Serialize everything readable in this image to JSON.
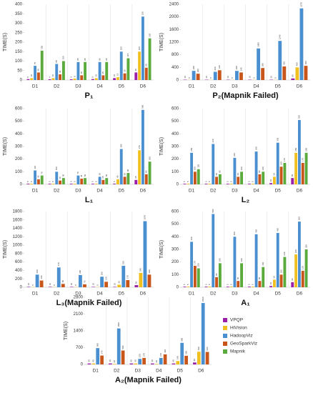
{
  "chart_data": [
    {
      "type": "bar",
      "title": "P₁",
      "ylabel": "TIME(S)",
      "categories": [
        "D1",
        "D2",
        "D3",
        "D4",
        "D5",
        "D6"
      ],
      "ylim": [
        0,
        400
      ],
      "yticks": [
        0,
        50,
        100,
        150,
        200,
        250,
        300,
        350,
        400
      ],
      "series": [
        {
          "name": "VPQP",
          "color": "#9b1fa8",
          "values": [
            5,
            4,
            4,
            5,
            10,
            40
          ]
        },
        {
          "name": "HiVision",
          "color": "#f0c020",
          "values": [
            10,
            10,
            8,
            10,
            15,
            150
          ]
        },
        {
          "name": "HadoopViz",
          "color": "#4a90d0",
          "values": [
            75,
            85,
            95,
            95,
            150,
            335
          ]
        },
        {
          "name": "GeoSparkViz",
          "color": "#c8561a",
          "values": [
            40,
            30,
            25,
            25,
            35,
            65
          ]
        },
        {
          "name": "Mapnik",
          "color": "#5aaa3c",
          "values": [
            155,
            100,
            95,
            95,
            115,
            220
          ]
        }
      ]
    },
    {
      "type": "bar",
      "title": "P₂(Mapnik Failed)",
      "ylabel": "TIME(S)",
      "categories": [
        "D1",
        "D2",
        "D3",
        "D4",
        "D5",
        "D6"
      ],
      "ylim": [
        0,
        2400
      ],
      "yticks": [
        0,
        400,
        800,
        1200,
        1600,
        2000,
        2400
      ],
      "series": [
        {
          "name": "VPQP",
          "color": "#9b1fa8",
          "values": [
            10,
            10,
            10,
            10,
            10,
            50
          ]
        },
        {
          "name": "HiVision",
          "color": "#f0c020",
          "values": [
            5,
            5,
            5,
            5,
            5,
            400
          ]
        },
        {
          "name": "HadoopViz",
          "color": "#4a90d0",
          "values": [
            290,
            260,
            290,
            1000,
            1240,
            2270
          ]
        },
        {
          "name": "GeoSparkViz",
          "color": "#c8561a",
          "values": [
            200,
            310,
            240,
            380,
            430,
            450
          ]
        }
      ]
    },
    {
      "type": "bar",
      "title": "L₁",
      "ylabel": "TIME(S)",
      "categories": [
        "D1",
        "D2",
        "D3",
        "D4",
        "D5",
        "D6"
      ],
      "ylim": [
        0,
        600
      ],
      "yticks": [
        0,
        100,
        200,
        300,
        400,
        500,
        600
      ],
      "series": [
        {
          "name": "VPQP",
          "color": "#9b1fa8",
          "values": [
            5,
            5,
            5,
            5,
            5,
            35
          ]
        },
        {
          "name": "HiVision",
          "color": "#f0c020",
          "values": [
            5,
            5,
            5,
            5,
            40,
            270
          ]
        },
        {
          "name": "HadoopViz",
          "color": "#4a90d0",
          "values": [
            110,
            100,
            70,
            60,
            280,
            590
          ]
        },
        {
          "name": "GeoSparkViz",
          "color": "#c8561a",
          "values": [
            40,
            30,
            45,
            35,
            60,
            80
          ]
        },
        {
          "name": "Mapnik",
          "color": "#5aaa3c",
          "values": [
            70,
            50,
            50,
            50,
            90,
            180
          ]
        }
      ]
    },
    {
      "type": "bar",
      "title": "L₂",
      "ylabel": "TIME(S)",
      "categories": [
        "D1",
        "D2",
        "D3",
        "D4",
        "D5",
        "D6"
      ],
      "ylim": [
        0,
        600
      ],
      "yticks": [
        0,
        100,
        200,
        300,
        400,
        500,
        600
      ],
      "series": [
        {
          "name": "VPQP",
          "color": "#9b1fa8",
          "values": [
            5,
            5,
            5,
            5,
            10,
            50
          ]
        },
        {
          "name": "HiVision",
          "color": "#f0c020",
          "values": [
            5,
            5,
            5,
            5,
            60,
            250
          ]
        },
        {
          "name": "HadoopViz",
          "color": "#4a90d0",
          "values": [
            250,
            320,
            210,
            260,
            330,
            510
          ]
        },
        {
          "name": "GeoSparkViz",
          "color": "#c8561a",
          "values": [
            100,
            60,
            60,
            80,
            140,
            170
          ]
        },
        {
          "name": "Mapnik",
          "color": "#5aaa3c",
          "values": [
            120,
            80,
            100,
            100,
            170,
            250
          ]
        }
      ]
    },
    {
      "type": "bar",
      "title": "L₃(Mapnik Failed)",
      "ylabel": "TIME(S)",
      "categories": [
        "D1",
        "D2",
        "D3",
        "D4",
        "D5",
        "D6"
      ],
      "ylim": [
        0,
        1800
      ],
      "yticks": [
        0,
        200,
        400,
        600,
        800,
        1000,
        1200,
        1400,
        1600,
        1800
      ],
      "series": [
        {
          "name": "VPQP",
          "color": "#9b1fa8",
          "values": [
            10,
            10,
            10,
            10,
            10,
            50
          ]
        },
        {
          "name": "HiVision",
          "color": "#f0c020",
          "values": [
            5,
            5,
            5,
            5,
            60,
            340
          ]
        },
        {
          "name": "HadoopViz",
          "color": "#4a90d0",
          "values": [
            300,
            470,
            290,
            250,
            510,
            1570
          ]
        },
        {
          "name": "GeoSparkViz",
          "color": "#c8561a",
          "values": [
            160,
            80,
            70,
            130,
            170,
            300
          ]
        }
      ]
    },
    {
      "type": "bar",
      "title": "A₁",
      "ylabel": "TIME(S)",
      "categories": [
        "D1",
        "D2",
        "D3",
        "D4",
        "D5",
        "D6"
      ],
      "ylim": [
        0,
        600
      ],
      "yticks": [
        0,
        100,
        200,
        300,
        400,
        500,
        600
      ],
      "series": [
        {
          "name": "VPQP",
          "color": "#9b1fa8",
          "values": [
            5,
            5,
            5,
            5,
            10,
            40
          ]
        },
        {
          "name": "HiVision",
          "color": "#f0c020",
          "values": [
            5,
            5,
            5,
            5,
            60,
            260
          ]
        },
        {
          "name": "HadoopViz",
          "color": "#4a90d0",
          "values": [
            360,
            580,
            400,
            420,
            430,
            520
          ]
        },
        {
          "name": "GeoSparkViz",
          "color": "#c8561a",
          "values": [
            170,
            80,
            50,
            50,
            100,
            130
          ]
        },
        {
          "name": "Mapnik",
          "color": "#5aaa3c",
          "values": [
            150,
            190,
            190,
            160,
            240,
            300
          ]
        }
      ]
    },
    {
      "type": "bar",
      "title": "A₂(Mapnik Failed)",
      "ylabel": "TIME(S)",
      "categories": [
        "D1",
        "D2",
        "D3",
        "D4",
        "D5",
        "D6"
      ],
      "ylim": [
        0,
        2800
      ],
      "yticks": [
        0,
        700,
        1400,
        2100,
        2800
      ],
      "series": [
        {
          "name": "VPQP",
          "color": "#9b1fa8",
          "values": [
            40,
            40,
            40,
            40,
            40,
            80
          ]
        },
        {
          "name": "HiVision",
          "color": "#f0c020",
          "values": [
            40,
            20,
            40,
            20,
            140,
            530
          ]
        },
        {
          "name": "HadoopViz",
          "color": "#4a90d0",
          "values": [
            680,
            1500,
            230,
            270,
            900,
            2560
          ]
        },
        {
          "name": "GeoSparkViz",
          "color": "#c8561a",
          "values": [
            370,
            580,
            270,
            420,
            360,
            520
          ]
        }
      ]
    }
  ]
}
